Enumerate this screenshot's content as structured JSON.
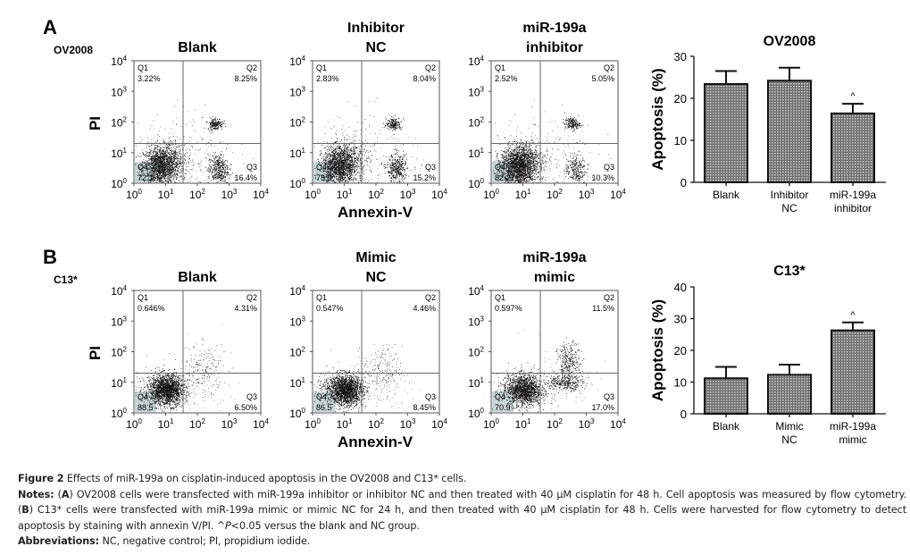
{
  "figure": {
    "panels": [
      {
        "letter": "A",
        "cell_line": "OV2008",
        "x_axis_label": "Annexin-V",
        "y_axis_label": "PI",
        "log_ticks": [
          "0",
          "1",
          "2",
          "3",
          "4"
        ],
        "flow_plots": [
          {
            "title": [
              "Blank"
            ],
            "q1": "3.22%",
            "q2": "8.25%",
            "q3": "16.4%",
            "q4": "72.1",
            "pattern": "A"
          },
          {
            "title": [
              "Inhibitor",
              "NC"
            ],
            "q1": "2.83%",
            "q2": "8.04%",
            "q3": "15.2%",
            "q4": "73.9",
            "pattern": "A"
          },
          {
            "title": [
              "miR-199a",
              "inhibitor"
            ],
            "q1": "2.52%",
            "q2": "5.05%",
            "q3": "10.3%",
            "q4": "82.2",
            "pattern": "A2"
          }
        ]
      },
      {
        "letter": "B",
        "cell_line": "C13*",
        "x_axis_label": "Annexin-V",
        "y_axis_label": "PI",
        "log_ticks": [
          "0",
          "1",
          "2",
          "3",
          "4"
        ],
        "flow_plots": [
          {
            "title": [
              "Blank"
            ],
            "q1": "0.646%",
            "q2": "4.31%",
            "q3": "6.50%",
            "q4": "88.5",
            "pattern": "B"
          },
          {
            "title": [
              "Mimic",
              "NC"
            ],
            "q1": "0.547%",
            "q2": "4.46%",
            "q3": "8.45%",
            "q4": "86.5",
            "pattern": "B"
          },
          {
            "title": [
              "miR-199a",
              "mimic"
            ],
            "q1": "0.597%",
            "q2": "11.5%",
            "q3": "17.0%",
            "q4": "70.9",
            "pattern": "B2"
          }
        ]
      }
    ],
    "quadrant_labels": [
      "Q1",
      "Q2",
      "Q3",
      "Q4"
    ],
    "caption": {
      "figure_label": "Figure 2",
      "figure_text": " Effects of miR-199a on cisplatin-induced apoptosis in the OV2008 and C13* cells.",
      "notes_label": "Notes:",
      "notes_a_open": " (",
      "notes_a": "A",
      "notes_a_text": ") OV2008 cells were transfected with miR-199a inhibitor or inhibitor NC and then treated with 40 µM cisplatin for 48 h. Cell apoptosis was measured by flow cytometry. (",
      "notes_b": "B",
      "notes_b_text": ") C13* cells were transfected with miR-199a mimic or mimic NC for 24 h, and then treated with 40 µM cisplatin for 48 h. Cells were harvested for flow cytometry to detect apoptosis by staining with annexin V/PI. ^",
      "notes_p": "P",
      "notes_end": "<0.05 versus the blank and NC group.",
      "abbrev_label": "Abbreviations:",
      "abbrev_text": " NC, negative control; PI, propidium iodide."
    }
  },
  "chart_data": [
    {
      "type": "bar",
      "title": "OV2008",
      "categories": [
        "Blank",
        "Inhibitor NC",
        "miR-199a inhibitor"
      ],
      "category_lines": [
        [
          "Blank"
        ],
        [
          "Inhibitor",
          "NC"
        ],
        [
          "miR-199a",
          "inhibitor"
        ]
      ],
      "values": [
        23.4,
        24.2,
        16.4
      ],
      "error_upper": [
        26.5,
        27.3,
        18.7
      ],
      "significance": [
        "",
        "",
        "^"
      ],
      "xlabel": "",
      "ylabel": "Apoptosis (%)",
      "ylim": [
        0,
        30
      ],
      "yticks": [
        0,
        10,
        20,
        30
      ],
      "grid": false
    },
    {
      "type": "bar",
      "title": "C13*",
      "categories": [
        "Blank",
        "Mimic NC",
        "miR-199a mimic"
      ],
      "category_lines": [
        [
          "Blank"
        ],
        [
          "Mimic",
          "NC"
        ],
        [
          "miR-199a",
          "mimic"
        ]
      ],
      "values": [
        11.2,
        12.3,
        26.3
      ],
      "error_upper": [
        14.8,
        15.5,
        28.8
      ],
      "significance": [
        "",
        "",
        "^"
      ],
      "xlabel": "",
      "ylabel": "Apoptosis (%)",
      "ylim": [
        0,
        40
      ],
      "yticks": [
        0,
        10,
        20,
        30,
        40
      ],
      "grid": false
    }
  ]
}
